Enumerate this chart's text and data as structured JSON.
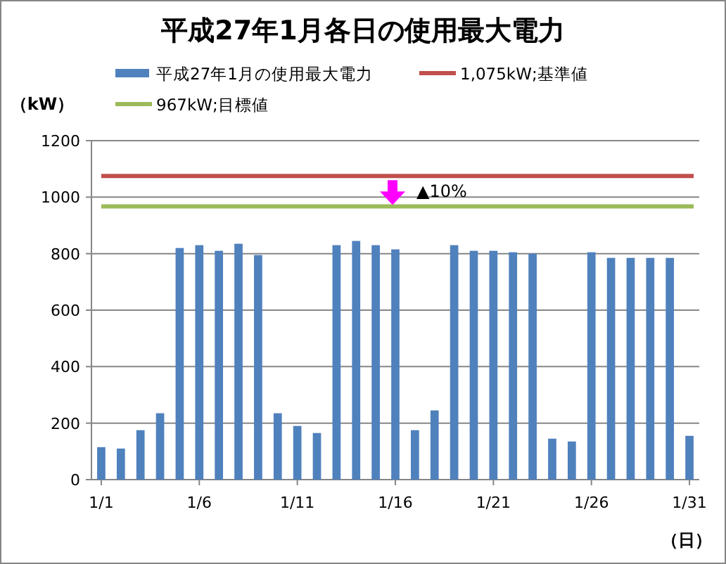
{
  "chart_data": {
    "type": "bar",
    "title": "平成27年1月各日の使用最大電力",
    "ylabel": "（kW）",
    "xlabel": "（日）",
    "categories": [
      "1/1",
      null,
      null,
      null,
      null,
      "1/6",
      null,
      null,
      null,
      null,
      "1/11",
      null,
      null,
      null,
      null,
      "1/16",
      null,
      null,
      null,
      null,
      "1/21",
      null,
      null,
      null,
      null,
      "1/26",
      null,
      null,
      null,
      null,
      "1/31"
    ],
    "series": [
      {
        "name": "平成27年1月の使用最大電力",
        "color": "#4f81bd",
        "values": [
          115,
          110,
          175,
          235,
          820,
          830,
          810,
          835,
          795,
          235,
          190,
          165,
          830,
          845,
          830,
          815,
          175,
          245,
          830,
          810,
          810,
          805,
          800,
          145,
          135,
          805,
          785,
          785,
          785,
          785,
          155
        ]
      }
    ],
    "ylim": [
      0,
      1200
    ],
    "yticks": [
      0,
      200,
      400,
      600,
      800,
      1000,
      1200
    ],
    "grid": "y",
    "legend": "top",
    "ref_lines": [
      {
        "axis": "y",
        "value": 1075,
        "label": "1,075kW;基準値",
        "color": "#c0504d"
      },
      {
        "axis": "y",
        "value": 967,
        "label": "967kW;目標値",
        "color": "#9bbb59"
      }
    ],
    "annotations": [
      "▲10%"
    ]
  }
}
